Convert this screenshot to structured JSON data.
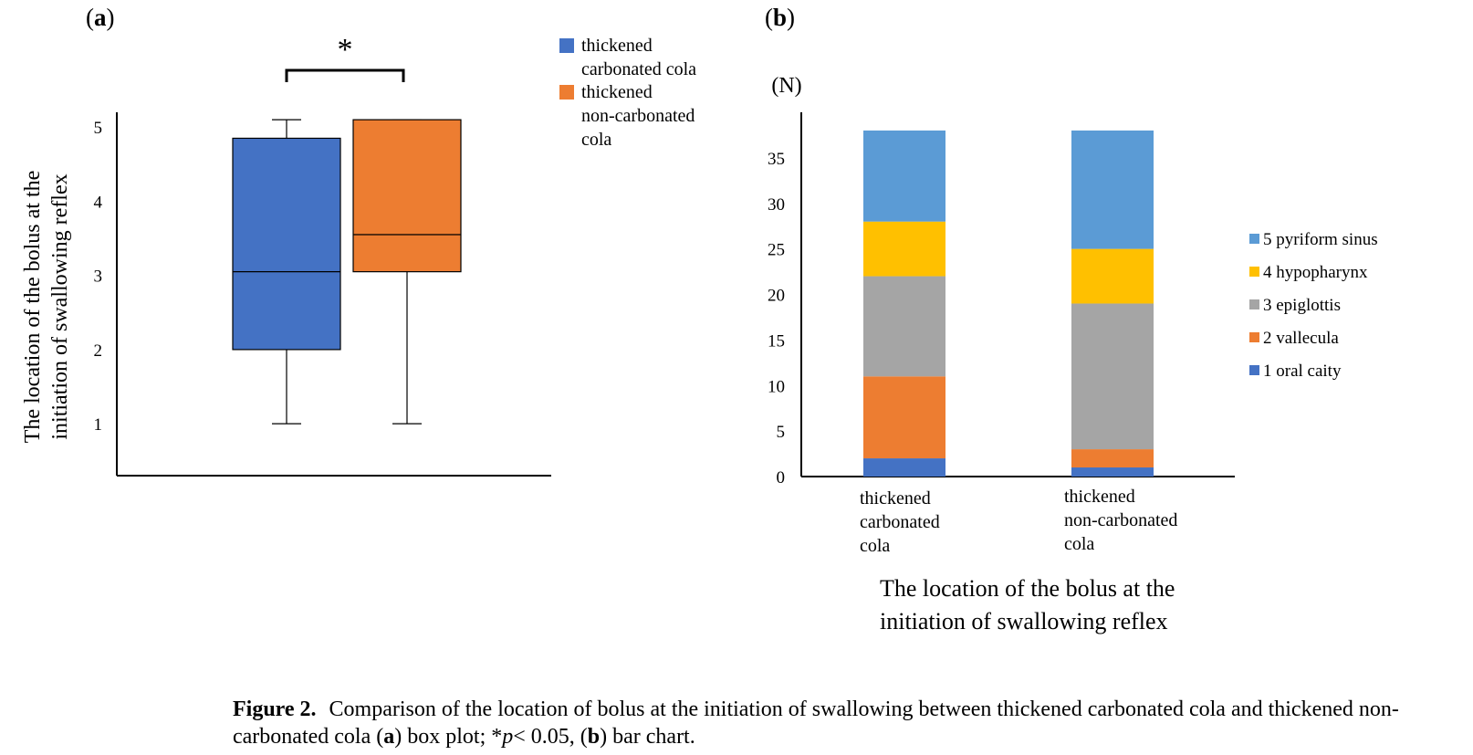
{
  "panel_a_label": "a",
  "panel_b_label": "b",
  "caption": {
    "label": "Figure 2.",
    "text_1": "Comparison of the location of bolus at the initiation of swallowing between thickened carbonated cola and thickened non-carbonated cola (",
    "bold_a": "a",
    "text_2": ") box plot; *",
    "italic_p": "p",
    "text_3": "< 0.05, (",
    "bold_b": "b",
    "text_4": ") bar chart."
  },
  "colors": {
    "blue": "#4472C4",
    "orange": "#ED7D31",
    "gray": "#A5A5A5",
    "yellow": "#FFC000",
    "lightblue": "#5B9BD5"
  },
  "chart_data": [
    {
      "type": "box",
      "ylabel_line1": "The location of the bolus at the",
      "ylabel_line2": "initiation of swallowing reflex",
      "ylim": [
        0.3,
        5.2
      ],
      "yticks": [
        1,
        2,
        3,
        4,
        5
      ],
      "significance": "*",
      "grid": false,
      "legend_position": "top-right",
      "series": [
        {
          "name_lines": [
            "thickened",
            "carbonated cola"
          ],
          "color": "#4472C4",
          "min": 1,
          "q1": 2,
          "median": 3.05,
          "q3": 4.85,
          "max": 5.1
        },
        {
          "name_lines": [
            "thickened",
            "non-carbonated",
            "cola"
          ],
          "color": "#ED7D31",
          "min": 1,
          "q1": 3.05,
          "median": 3.55,
          "q3": 5.1,
          "max": 5.1
        }
      ]
    },
    {
      "type": "stacked-bar",
      "ylabel": "(N)",
      "xlabel_line1": "The location of the bolus at the",
      "xlabel_line2": "initiation of swallowing reflex",
      "ylim": [
        0,
        40
      ],
      "yticks": [
        0,
        5,
        10,
        15,
        20,
        25,
        30,
        35
      ],
      "grid": false,
      "legend_position": "right",
      "categories": [
        [
          "thickened",
          "carbonated",
          "cola"
        ],
        [
          "thickened",
          "non-carbonated",
          "cola"
        ]
      ],
      "series": [
        {
          "name": "1 oral caity",
          "color": "#4472C4",
          "values": [
            2,
            1
          ]
        },
        {
          "name": "2 vallecula",
          "color": "#ED7D31",
          "values": [
            9,
            2
          ]
        },
        {
          "name": "3 epiglottis",
          "color": "#A5A5A5",
          "values": [
            11,
            16
          ]
        },
        {
          "name": "4 hypopharynx",
          "color": "#FFC000",
          "values": [
            6,
            6
          ]
        },
        {
          "name": "5 pyriform sinus",
          "color": "#5B9BD5",
          "values": [
            10,
            13
          ]
        }
      ]
    }
  ]
}
